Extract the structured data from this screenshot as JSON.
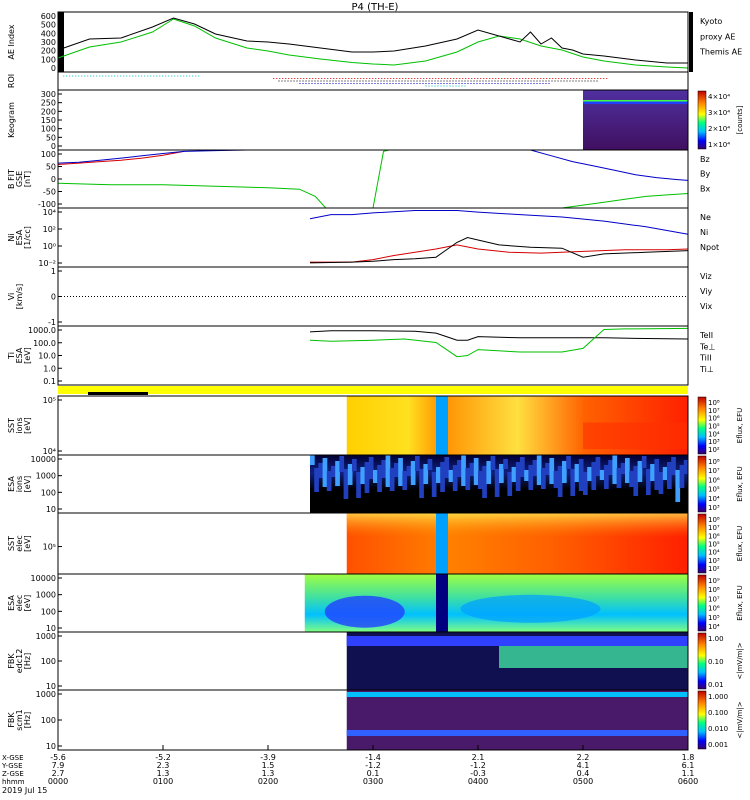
{
  "title": "P4 (TH-E)",
  "date_label": "2019 Jul 15",
  "colors": {
    "red": "#d40000",
    "green": "#00c000",
    "blue": "#0000c8",
    "black": "#000000",
    "cyan": "#00c0c0",
    "yellow": "#ffff00"
  },
  "chart_data": {
    "type": "line",
    "time_axis": {
      "range": [
        "00:00",
        "06:00"
      ],
      "row_labels": [
        "X-GSE",
        "Y-GSE",
        "Z-GSE",
        "hhmm"
      ],
      "columns": [
        {
          "x": "-5.6",
          "y": "7.9",
          "z": "2.7",
          "t": "0000"
        },
        {
          "x": "-5.2",
          "y": "2.3",
          "z": "1.3",
          "t": "0100"
        },
        {
          "x": "-3.9",
          "y": "1.5",
          "z": "1.3",
          "t": "0200"
        },
        {
          "x": "-1.4",
          "y": "-1.2",
          "z": "0.1",
          "t": "0300"
        },
        {
          "x": "2.1",
          "y": "-1.2",
          "z": "-0.3",
          "t": "0400"
        },
        {
          "x": "2.2",
          "y": "4.1",
          "z": "0.4",
          "t": "0500"
        },
        {
          "x": "1.8",
          "y": "6.1",
          "z": "1.1",
          "t": "0600"
        }
      ]
    },
    "panels": [
      {
        "id": "ae",
        "type": "line",
        "ylabel": [
          "AE Index"
        ],
        "yticks": [
          "600",
          "500",
          "400",
          "300",
          "200",
          "100",
          "0"
        ],
        "legend": [
          {
            "label": "Kyoto",
            "color": "#00c000"
          },
          {
            "label": "proxy AE",
            "color": "#00c000"
          },
          {
            "label": "Themis AE",
            "color": "#000000"
          }
        ],
        "series": [
          {
            "name": "Kyoto proxy AE",
            "color": "#00c000",
            "t": [
              0,
              0.3,
              0.6,
              0.9,
              1.1,
              1.3,
              1.5,
              1.8,
              2.0,
              2.2,
              2.5,
              2.8,
              3.0,
              3.2,
              3.5,
              3.8,
              4.0,
              4.2,
              4.4,
              4.6,
              4.8,
              5.0,
              5.2,
              5.5,
              5.8,
              6.0
            ],
            "v": [
              140,
              250,
              300,
              400,
              530,
              460,
              340,
              240,
              210,
              170,
              130,
              95,
              80,
              70,
              110,
              200,
              300,
              360,
              330,
              260,
              220,
              150,
              110,
              70,
              50,
              40
            ]
          },
          {
            "name": "Themis AE",
            "color": "#000000",
            "t": [
              0,
              0.3,
              0.6,
              0.9,
              1.1,
              1.3,
              1.5,
              1.8,
              2.0,
              2.2,
              2.5,
              2.8,
              3.0,
              3.2,
              3.5,
              3.8,
              4.0,
              4.2,
              4.4,
              4.5,
              4.6,
              4.7,
              4.8,
              4.9,
              5.0,
              5.2,
              5.5,
              5.8,
              6.0
            ],
            "v": [
              220,
              330,
              340,
              450,
              540,
              480,
              380,
              310,
              300,
              280,
              240,
              200,
              200,
              210,
              260,
              330,
              420,
              360,
              300,
              400,
              280,
              340,
              240,
              220,
              180,
              160,
              120,
              90,
              90
            ]
          }
        ]
      },
      {
        "id": "roi",
        "type": "flags",
        "ylabel": [
          "ROI"
        ],
        "rows": [
          {
            "color": "#00c0c0",
            "from": 0.05,
            "to": 1.35
          },
          {
            "color": "#d40000",
            "from": 2.05,
            "to": 5.25
          },
          {
            "color": "#000000",
            "from": 2.1,
            "to": 5.15
          },
          {
            "color": "#0000c8",
            "from": 2.3,
            "to": 4.7
          },
          {
            "color": "#00c0c0",
            "from": 3.5,
            "to": 3.9
          }
        ]
      },
      {
        "id": "keogram",
        "type": "heatmap",
        "ylabel": [
          "Keogram"
        ],
        "yticks": [
          "300",
          "250",
          "200",
          "150",
          "100",
          "50",
          "0"
        ],
        "colorbar": {
          "ticks": [
            "4×10⁴",
            "3×10⁴",
            "2×10⁴",
            "1×10⁴"
          ],
          "label": "[counts]"
        },
        "data_from": 5.0
      },
      {
        "id": "bfield",
        "type": "line",
        "ylabel": [
          "B FIT",
          "GSE",
          "[nT]"
        ],
        "yticks": [
          "100",
          "50",
          "0",
          "-50",
          "-100"
        ],
        "legend": [
          {
            "label": "Bz",
            "color": "#d40000"
          },
          {
            "label": "By",
            "color": "#00c000"
          },
          {
            "label": "Bx",
            "color": "#0000c8"
          }
        ],
        "series": [
          {
            "name": "Bz",
            "color": "#d40000",
            "t": [
              0,
              0.2,
              0.4,
              0.6,
              0.8,
              1.0,
              1.2
            ],
            "v": [
              50,
              55,
              60,
              65,
              72,
              82,
              95
            ]
          },
          {
            "name": "By",
            "color": "#00c000",
            "t": [
              0,
              0.5,
              1.0,
              1.5,
              2.0,
              2.3,
              2.45,
              2.55,
              2.65,
              2.7,
              3.0,
              3.1,
              3.15,
              3.2
            ],
            "v": [
              -15,
              -20,
              -20,
              -25,
              -30,
              -35,
              -60,
              -100,
              -100,
              -100,
              -100,
              95,
              100,
              100
            ],
            "t2": [
              4.8,
              5.0,
              5.2,
              5.4,
              5.6,
              5.8,
              6.0
            ],
            "v2": [
              -100,
              -90,
              -80,
              -70,
              -60,
              -55,
              -50
            ]
          },
          {
            "name": "Bx",
            "color": "#0000c8",
            "t": [
              0,
              0.2,
              0.4,
              0.6,
              0.8,
              1.0,
              1.2,
              1.5,
              1.8,
              2.0
            ],
            "v": [
              55,
              58,
              65,
              72,
              80,
              88,
              95,
              98,
              100,
              100
            ],
            "t2": [
              4.5,
              4.7,
              4.9,
              5.1,
              5.3,
              5.5,
              5.7,
              5.9,
              6.0
            ],
            "v2": [
              100,
              80,
              60,
              45,
              30,
              15,
              5,
              -2,
              -5
            ]
          }
        ]
      },
      {
        "id": "density",
        "type": "line",
        "ylabel": [
          "Ni",
          "ESA",
          "[1/cc]"
        ],
        "yticks": [
          "10⁴",
          "10²",
          "10⁰",
          "10⁻²"
        ],
        "legend": [
          {
            "label": "Ne",
            "color": "#d40000"
          },
          {
            "label": "Ni",
            "color": "#000000"
          },
          {
            "label": "Npot",
            "color": "#0000c8"
          }
        ],
        "series": [
          {
            "name": "Ne",
            "color": "#d40000",
            "t": [
              2.4,
              2.8,
              3.0,
              3.2,
              3.4,
              3.6,
              3.8,
              4.0,
              4.3,
              4.6,
              5.0,
              5.4,
              5.8,
              6.0
            ],
            "v": [
              -1.8,
              -1.8,
              -1.5,
              -1.0,
              -0.6,
              -0.2,
              0.3,
              -0.2,
              -0.6,
              -0.7,
              -0.5,
              -0.3,
              -0.3,
              -0.2
            ]
          },
          {
            "name": "Ni",
            "color": "#000000",
            "t": [
              2.4,
              2.8,
              3.0,
              3.2,
              3.4,
              3.6,
              3.8,
              3.9,
              4.0,
              4.2,
              4.5,
              4.8,
              5.0,
              5.2,
              5.6,
              6.0
            ],
            "v": [
              -1.9,
              -1.8,
              -1.7,
              -1.5,
              -1.4,
              -1.2,
              0.6,
              1.2,
              0.9,
              0.3,
              0.0,
              -0.1,
              -1.2,
              -0.8,
              -0.6,
              -0.4
            ]
          },
          {
            "name": "Npot",
            "color": "#0000c8",
            "t": [
              2.4,
              2.6,
              2.8,
              3.0,
              3.4,
              3.6,
              3.8,
              4.0,
              4.4,
              4.8,
              5.2,
              5.6,
              6.0
            ],
            "v": [
              3.5,
              4.0,
              4.0,
              4.2,
              4.5,
              4.5,
              4.5,
              4.3,
              4.0,
              3.7,
              3.2,
              2.5,
              1.6
            ]
          }
        ]
      },
      {
        "id": "velocity",
        "type": "line",
        "ylabel": [
          "Vi",
          "[km/s]"
        ],
        "yticks": [
          "1",
          "0",
          "-1"
        ],
        "legend": [
          {
            "label": "Viz",
            "color": "#d40000"
          },
          {
            "label": "Viy",
            "color": "#00c000"
          },
          {
            "label": "Vix",
            "color": "#0000c8"
          }
        ],
        "series": [
          {
            "name": "zero",
            "color": "#000000",
            "t": [
              0,
              6
            ],
            "v": [
              0,
              0
            ]
          }
        ]
      },
      {
        "id": "temperature",
        "type": "line",
        "ylabel": [
          "Ti",
          "ESA",
          "[eV]"
        ],
        "yticks": [
          "1000.0",
          "100.0",
          "10.0",
          "1.0",
          "0.1"
        ],
        "legend": [
          {
            "label": "TeII",
            "color": "#000000"
          },
          {
            "label": "Te⊥",
            "color": "#d40000"
          },
          {
            "label": "TiII",
            "color": "#00c000"
          },
          {
            "label": "Ti⊥",
            "color": "#0000c8"
          }
        ],
        "series": [
          {
            "name": "TeII",
            "color": "#000000",
            "t": [
              2.4,
              2.6,
              3.0,
              3.4,
              3.6,
              3.7,
              3.8,
              3.9,
              4.0,
              4.4,
              4.8,
              5.2,
              5.5,
              6.0
            ],
            "v": [
              3.3,
              3.4,
              3.4,
              3.35,
              3.2,
              2.9,
              2.6,
              2.6,
              2.9,
              2.8,
              2.8,
              2.8,
              2.75,
              2.7
            ]
          },
          {
            "name": "TiII",
            "color": "#00c000",
            "t": [
              2.4,
              2.6,
              3.0,
              3.3,
              3.6,
              3.7,
              3.8,
              3.9,
              4.0,
              4.4,
              4.8,
              5.0,
              5.2,
              5.4,
              6.0
            ],
            "v": [
              2.6,
              2.5,
              2.6,
              2.7,
              2.4,
              1.8,
              1.2,
              1.3,
              1.8,
              1.6,
              1.6,
              1.9,
              3.5,
              3.55,
              3.6
            ]
          }
        ]
      },
      {
        "id": "sst_ion",
        "type": "heatmap",
        "ylabel": [
          "SST",
          "ions",
          "[eV]"
        ],
        "yticks": [
          "10⁵",
          "10⁴"
        ],
        "colorbar": {
          "ticks": [
            "10⁸",
            "10⁷",
            "10⁶",
            "10⁵",
            "10⁴",
            "10³",
            "10²"
          ],
          "label": "Eflux, EFU"
        },
        "data_from": 2.75
      },
      {
        "id": "esa_ion",
        "type": "heatmap",
        "ylabel": [
          "ESA",
          "ions",
          "[eV]"
        ],
        "yticks": [
          "10000",
          "1000",
          "100",
          "10"
        ],
        "colorbar": {
          "ticks": [
            "10⁸",
            "10⁷",
            "10⁶",
            "10⁵",
            "10⁴",
            "10³"
          ],
          "label": "Eflux, EFU"
        },
        "data_from": 2.4
      },
      {
        "id": "sst_elec",
        "type": "heatmap",
        "ylabel": [
          "SST",
          "elec",
          "[eV]"
        ],
        "yticks": [
          "10⁵"
        ],
        "colorbar": {
          "ticks": [
            "10⁸",
            "10⁷",
            "10⁶",
            "10⁵",
            "10⁴",
            "10³",
            "10²"
          ],
          "label": "Eflux, EFU"
        },
        "data_from": 2.75
      },
      {
        "id": "esa_elec",
        "type": "heatmap",
        "ylabel": [
          "ESA",
          "elec",
          "[eV]"
        ],
        "yticks": [
          "10000",
          "1000",
          "100",
          "10"
        ],
        "colorbar": {
          "ticks": [
            "10⁹",
            "10⁸",
            "10⁷",
            "10⁶",
            "10⁵",
            "10⁴"
          ],
          "label": "Eflux, EFU"
        },
        "data_from": 2.35
      },
      {
        "id": "fbk_edc",
        "type": "heatmap",
        "ylabel": [
          "FBK",
          "edc12",
          "[Hz]"
        ],
        "yticks": [
          "1000",
          "100",
          "10"
        ],
        "colorbar": {
          "ticks": [
            "1.00",
            "0.10",
            "0.01"
          ],
          "label": "<|mV/m|>"
        },
        "data_from": 2.75
      },
      {
        "id": "fbk_scm",
        "type": "heatmap",
        "ylabel": [
          "FBK",
          "scm1",
          "[Hz]"
        ],
        "yticks": [
          "1000",
          "100",
          "10"
        ],
        "colorbar": {
          "ticks": [
            "1.000",
            "0.100",
            "0.010",
            "0.001"
          ],
          "label": "<|mV/m|>"
        },
        "data_from": 2.75
      }
    ]
  }
}
